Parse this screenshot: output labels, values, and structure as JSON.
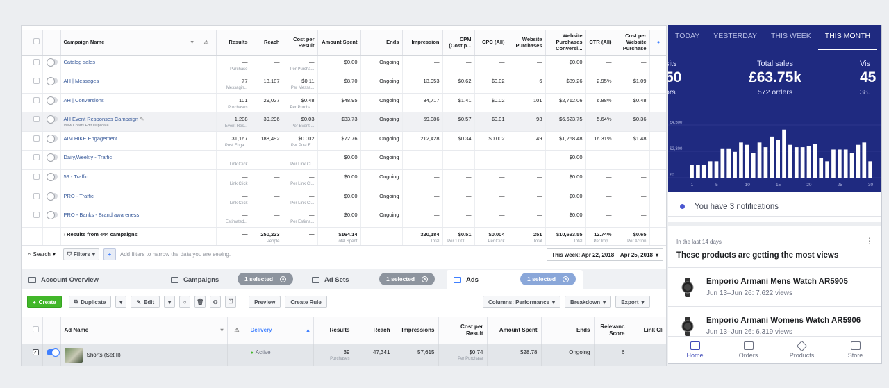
{
  "campaigns_table": {
    "headers": [
      "Campaign Name",
      "Results",
      "Reach",
      "Cost per Result",
      "Amount Spent",
      "Ends",
      "Impression",
      "CPM (Cost p...",
      "CPC (All)",
      "Website Purchases",
      "Website Purchases Conversi...",
      "CTR (All)",
      "Cost per Website Purchase"
    ],
    "rows": [
      {
        "name": "Catalog sales",
        "toggle": false,
        "results": "—",
        "results_sub": "Purchase",
        "reach": "—",
        "cpr": "—",
        "cpr_sub": "Per Purcha...",
        "spent": "$0.00",
        "ends": "Ongoing",
        "impr": "—",
        "cpm": "—",
        "cpc": "—",
        "wp": "—",
        "wpc": "$0.00",
        "ctr": "—",
        "cpwp": "—"
      },
      {
        "name": "AH | Messages",
        "toggle": false,
        "results": "77",
        "results_sub": "Messagin...",
        "reach": "13,187",
        "cpr": "$0.11",
        "cpr_sub": "Per Messa...",
        "spent": "$8.70",
        "ends": "Ongoing",
        "impr": "13,953",
        "cpm": "$0.62",
        "cpc": "$0.02",
        "wp": "6",
        "wpc": "$89.26",
        "ctr": "2.95%",
        "cpwp": "$1.09"
      },
      {
        "name": "AH | Conversions",
        "toggle": false,
        "results": "101",
        "results_sub": "Purchases",
        "reach": "29,027",
        "cpr": "$0.48",
        "cpr_sub": "Per Purcha...",
        "spent": "$48.95",
        "ends": "Ongoing",
        "impr": "34,717",
        "cpm": "$1.41",
        "cpc": "$0.02",
        "wp": "101",
        "wpc": "$2,712.06",
        "ctr": "6.88%",
        "cpwp": "$0.48"
      },
      {
        "name": "AH Event Responses Campaign",
        "actions": "View Charts  Edit  Duplicate",
        "highlight": true,
        "toggle": false,
        "results": "1,208",
        "results_sub": "Event Res...",
        "reach": "39,296",
        "cpr": "$0.03",
        "cpr_sub": "Per Event ...",
        "spent": "$33.73",
        "ends": "Ongoing",
        "impr": "59,086",
        "cpm": "$0.57",
        "cpc": "$0.01",
        "wp": "93",
        "wpc": "$6,623.75",
        "ctr": "5.64%",
        "cpwp": "$0.36"
      },
      {
        "name": "AIM HIKE Engagement",
        "toggle": false,
        "results": "31,167",
        "results_sub": "Post Enga...",
        "reach": "188,492",
        "cpr": "$0.002",
        "cpr_sub": "Per Post E...",
        "spent": "$72.76",
        "ends": "Ongoing",
        "impr": "212,428",
        "cpm": "$0.34",
        "cpc": "$0.002",
        "wp": "49",
        "wpc": "$1,268.48",
        "ctr": "16.31%",
        "cpwp": "$1.48"
      },
      {
        "name": "Daily,Weekly - Traffic",
        "toggle": false,
        "results": "—",
        "results_sub": "Link Click",
        "reach": "—",
        "cpr": "—",
        "cpr_sub": "Per Link Cl...",
        "spent": "$0.00",
        "ends": "Ongoing",
        "impr": "—",
        "cpm": "—",
        "cpc": "—",
        "wp": "—",
        "wpc": "$0.00",
        "ctr": "—",
        "cpwp": "—"
      },
      {
        "name": "59 - Traffic",
        "toggle": false,
        "results": "—",
        "results_sub": "Link Click",
        "reach": "—",
        "cpr": "—",
        "cpr_sub": "Per Link Cl...",
        "spent": "$0.00",
        "ends": "Ongoing",
        "impr": "—",
        "cpm": "—",
        "cpc": "—",
        "wp": "—",
        "wpc": "$0.00",
        "ctr": "—",
        "cpwp": "—"
      },
      {
        "name": "PRO - Traffic",
        "toggle": false,
        "results": "—",
        "results_sub": "Link Click",
        "reach": "—",
        "cpr": "—",
        "cpr_sub": "Per Link Cl...",
        "spent": "$0.00",
        "ends": "Ongoing",
        "impr": "—",
        "cpm": "—",
        "cpc": "—",
        "wp": "—",
        "wpc": "$0.00",
        "ctr": "—",
        "cpwp": "—"
      },
      {
        "name": "PRO - Banks - Brand awareness",
        "toggle": false,
        "results": "—",
        "results_sub": "Estimated...",
        "reach": "—",
        "cpr": "—",
        "cpr_sub": "Per Estima...",
        "spent": "$0.00",
        "ends": "Ongoing",
        "impr": "—",
        "cpm": "—",
        "cpc": "—",
        "wp": "—",
        "wpc": "$0.00",
        "ctr": "—",
        "cpwp": "—"
      }
    ],
    "total": {
      "label": "Results from 444 campaigns",
      "results": "—",
      "reach": "250,223",
      "reach_sub": "People",
      "cpr": "—",
      "spent": "$164.14",
      "spent_sub": "Total Spent",
      "impr": "320,184",
      "impr_sub": "Total",
      "cpm": "$0.51",
      "cpm_sub": "Per 1,000 I...",
      "cpc": "$0.004",
      "cpc_sub": "Per Click",
      "wp": "251",
      "wp_sub": "Total",
      "wpc": "$10,693.55",
      "wpc_sub": "Total",
      "ctr": "12.74%",
      "ctr_sub": "Per Imp...",
      "cpwp": "$0.65",
      "cpwp_sub": "Per Action"
    }
  },
  "filterbar": {
    "search": "Search",
    "filters": "Filters",
    "plus": "+",
    "hint": "Add filters to narrow the data you are seeing.",
    "date": "This week: Apr 22, 2018 – Apr 25, 2018"
  },
  "tabs": {
    "account": "Account Overview",
    "campaigns": "Campaigns",
    "campaigns_sel": "1 selected",
    "adsets": "Ad Sets",
    "adsets_sel": "1 selected",
    "ads": "Ads",
    "ads_sel": "1 selected"
  },
  "toolbar": {
    "create": "Create",
    "duplicate": "Duplicate",
    "edit": "Edit",
    "preview": "Preview",
    "create_rule": "Create Rule",
    "columns": "Columns: Performance",
    "breakdown": "Breakdown",
    "export": "Export"
  },
  "ads_table": {
    "headers": {
      "name": "Ad Name",
      "delivery": "Delivery",
      "results": "Results",
      "reach": "Reach",
      "impressions": "Impressions",
      "cpr": "Cost per Result",
      "spent": "Amount Spent",
      "ends": "Ends",
      "relevance": "Relevanc Score",
      "linkclicks": "Link Cli"
    },
    "row": {
      "name": "Shorts (Set II)",
      "delivery": "Active",
      "results": "39",
      "results_sub": "Purchases",
      "reach": "47,341",
      "impressions": "57,615",
      "cpr": "$0.74",
      "cpr_sub": "Per Purchase",
      "spent": "$28.78",
      "ends": "Ongoing",
      "relevance": "6"
    }
  },
  "panel": {
    "tabs": [
      "TODAY",
      "YESTERDAY",
      "THIS WEEK",
      "THIS MONTH"
    ],
    "left_label": "sits",
    "left_value": "50",
    "left_sub": "ors",
    "mid_label": "Total sales",
    "mid_value": "£63.75k",
    "mid_sub": "572 orders",
    "right_label": "Vis",
    "right_value": "45",
    "right_sub": "38.",
    "notification": "You have 3 notifications",
    "card_eyebrow": "In the last 14 days",
    "card_title": "These products are getting the most views",
    "products": [
      {
        "name": "Emporio Armani Mens Watch AR5905",
        "sub": "Jun 13–Jun 26: 7,622 views"
      },
      {
        "name": "Emporio Armani Womens Watch AR5906",
        "sub": "Jun 13–Jun 26: 6,319 views"
      }
    ],
    "nav": [
      "Home",
      "Orders",
      "Products",
      "Store"
    ]
  },
  "chart_data": {
    "type": "bar",
    "categories": [
      1,
      2,
      3,
      4,
      5,
      6,
      7,
      8,
      9,
      10,
      11,
      12,
      13,
      14,
      15,
      16,
      17,
      18,
      19,
      20,
      21,
      22,
      23,
      24,
      25,
      26,
      27,
      28,
      29,
      30
    ],
    "values": [
      1100,
      1100,
      1100,
      1400,
      1400,
      2500,
      2500,
      2200,
      3000,
      2800,
      2100,
      3000,
      2600,
      3500,
      3200,
      4100,
      2800,
      2600,
      2600,
      2700,
      2900,
      1700,
      1400,
      2400,
      2400,
      2400,
      2100,
      2800,
      3000,
      1400
    ],
    "x_tick_labels": [
      "1",
      "5",
      "10",
      "15",
      "20",
      "25",
      "30"
    ],
    "y_tick_labels": [
      "£4,500",
      "£2,300",
      "£0"
    ],
    "ylim": [
      0,
      4500
    ]
  }
}
